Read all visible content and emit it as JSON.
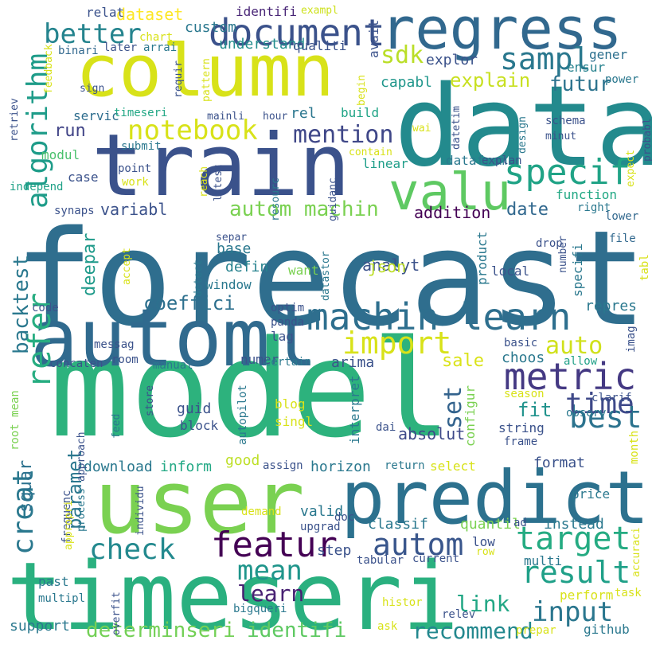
{
  "words": [
    {
      "text": "forecast",
      "color": "#2f6e8e"
    },
    {
      "text": "model",
      "color": "#2db27d"
    },
    {
      "text": "timeseri",
      "color": "#2ab07f"
    },
    {
      "text": "data",
      "color": "#238a8d"
    },
    {
      "text": "user",
      "color": "#7ad151"
    },
    {
      "text": "column",
      "color": "#d8e219"
    },
    {
      "text": "train",
      "color": "#3b528b"
    },
    {
      "text": "predict",
      "color": "#2c718e"
    },
    {
      "text": "regress",
      "color": "#31688e"
    },
    {
      "text": "automl",
      "color": "#306a8e"
    },
    {
      "text": "valu",
      "color": "#5ec962"
    },
    {
      "text": "machin learn",
      "color": "#2e6f8e"
    },
    {
      "text": "document",
      "color": "#3b528b"
    },
    {
      "text": "metric",
      "color": "#443983"
    },
    {
      "text": "specif",
      "color": "#20a386"
    },
    {
      "text": "featur",
      "color": "#440154"
    },
    {
      "text": "notebook",
      "color": "#d8e219"
    },
    {
      "text": "best",
      "color": "#2c738e"
    },
    {
      "text": "target",
      "color": "#25ab82"
    },
    {
      "text": "time",
      "color": "#3e4989"
    },
    {
      "text": "result",
      "color": "#1fa088"
    },
    {
      "text": "check",
      "color": "#23898e"
    },
    {
      "text": "autom",
      "color": "#39568c"
    },
    {
      "text": "sampl",
      "color": "#2a788e"
    },
    {
      "text": "better",
      "color": "#25848e"
    },
    {
      "text": "mention",
      "color": "#3f4788"
    },
    {
      "text": "import",
      "color": "#d8e219"
    },
    {
      "text": "auto",
      "color": "#d0e11c"
    },
    {
      "text": "input",
      "color": "#2a768e"
    },
    {
      "text": "mean",
      "color": "#1f958b"
    },
    {
      "text": "refer",
      "color": "#27ad81"
    },
    {
      "text": "algorithm",
      "color": "#1e9c89"
    },
    {
      "text": "creat",
      "color": "#2a788e"
    },
    {
      "text": "autom machin",
      "color": "#7ad151"
    },
    {
      "text": "coeffici",
      "color": "#2d708e"
    },
    {
      "text": "set",
      "color": "#33638d"
    },
    {
      "text": "learn",
      "color": "#482173"
    },
    {
      "text": "determinseri",
      "color": "#73d056"
    },
    {
      "text": "identifi",
      "color": "#5ec962"
    },
    {
      "text": "recommend",
      "color": "#23888e"
    },
    {
      "text": "link",
      "color": "#22a785"
    },
    {
      "text": "sdk",
      "color": "#bade28"
    },
    {
      "text": "explain",
      "color": "#c8e020"
    },
    {
      "text": "futur",
      "color": "#2c738e"
    },
    {
      "text": "backtest",
      "color": "#2a788e"
    },
    {
      "text": "paramet",
      "color": "#2a778e"
    },
    {
      "text": "squar",
      "color": "#2c718e"
    },
    {
      "text": "deepar",
      "color": "#1f9a8a"
    },
    {
      "text": "run",
      "color": "#414487"
    },
    {
      "text": "variabl",
      "color": "#3b528b"
    },
    {
      "text": "addition",
      "color": "#440154"
    },
    {
      "text": "date",
      "color": "#31688e"
    },
    {
      "text": "sale",
      "color": "#dae319"
    },
    {
      "text": "fit",
      "color": "#20928c"
    },
    {
      "text": "absolut",
      "color": "#3e4989"
    },
    {
      "text": "analyt",
      "color": "#3b528b"
    },
    {
      "text": "json",
      "color": "#bddf26"
    },
    {
      "text": "dataset",
      "color": "#fde725"
    },
    {
      "text": "custom",
      "color": "#2a788e"
    },
    {
      "text": "understand",
      "color": "#228d8d"
    },
    {
      "text": "qualiti",
      "color": "#3b528b"
    },
    {
      "text": "relat",
      "color": "#3b528b"
    },
    {
      "text": "identifi",
      "color": "#482576"
    },
    {
      "text": "exampl",
      "color": "#cde11d"
    },
    {
      "text": "chart",
      "color": "#d8e219"
    },
    {
      "text": "binari",
      "color": "#31688e"
    },
    {
      "text": "later",
      "color": "#3b528b"
    },
    {
      "text": "arrai",
      "color": "#2a788e"
    },
    {
      "text": "servic",
      "color": "#2e6d8e"
    },
    {
      "text": "timeseri",
      "color": "#22a785"
    },
    {
      "text": "rel",
      "color": "#2a768e"
    },
    {
      "text": "build",
      "color": "#20a486"
    },
    {
      "text": "explor",
      "color": "#3b528b"
    },
    {
      "text": "capabl",
      "color": "#1f968b"
    },
    {
      "text": "gener",
      "color": "#2d708e"
    },
    {
      "text": "ensur",
      "color": "#26828e"
    },
    {
      "text": "power",
      "color": "#2a788e"
    },
    {
      "text": "modul",
      "color": "#4ac16d"
    },
    {
      "text": "submit",
      "color": "#2a788e"
    },
    {
      "text": "case",
      "color": "#3b528b"
    },
    {
      "text": "point",
      "color": "#3b528b"
    },
    {
      "text": "work",
      "color": "#d8e219"
    },
    {
      "text": "independ",
      "color": "#1fa187"
    },
    {
      "text": "linear",
      "color": "#1f9e89"
    },
    {
      "text": "datafram",
      "color": "#2a788e"
    },
    {
      "text": "explan",
      "color": "#3b528b"
    },
    {
      "text": "function",
      "color": "#22a884"
    },
    {
      "text": "right",
      "color": "#2a788e"
    },
    {
      "text": "synaps",
      "color": "#3b528b"
    },
    {
      "text": "lower",
      "color": "#31688e"
    },
    {
      "text": "file",
      "color": "#31688e"
    },
    {
      "text": "drop",
      "color": "#3b528b"
    },
    {
      "text": "base",
      "color": "#2a788e"
    },
    {
      "text": "defin",
      "color": "#26828e"
    },
    {
      "text": "window",
      "color": "#2a788e"
    },
    {
      "text": "want",
      "color": "#7ad151"
    },
    {
      "text": "local",
      "color": "#3b528b"
    },
    {
      "text": "repres",
      "color": "#2a788e"
    },
    {
      "text": "code",
      "color": "#3b528b"
    },
    {
      "text": "optim",
      "color": "#3b528b"
    },
    {
      "text": "panda",
      "color": "#3b528b"
    },
    {
      "text": "lag",
      "color": "#3b528b"
    },
    {
      "text": "messag",
      "color": "#3b528b"
    },
    {
      "text": "numer",
      "color": "#3b528b"
    },
    {
      "text": "arima",
      "color": "#3b528b"
    },
    {
      "text": "choos",
      "color": "#2a788e"
    },
    {
      "text": "basic",
      "color": "#3b528b"
    },
    {
      "text": "allow",
      "color": "#1fa187"
    },
    {
      "text": "concaten",
      "color": "#3b528b"
    },
    {
      "text": "room",
      "color": "#3b528b"
    },
    {
      "text": "manual",
      "color": "#2a788e"
    },
    {
      "text": "certain",
      "color": "#2a788e"
    },
    {
      "text": "season",
      "color": "#d8e219"
    },
    {
      "text": "clarif",
      "color": "#3b528b"
    },
    {
      "text": "observ",
      "color": "#2a788e"
    },
    {
      "text": "guid",
      "color": "#3b528b"
    },
    {
      "text": "block",
      "color": "#3b528b"
    },
    {
      "text": "blog",
      "color": "#d8e219"
    },
    {
      "text": "singl",
      "color": "#d8e219"
    },
    {
      "text": "dai",
      "color": "#3b528b"
    },
    {
      "text": "string",
      "color": "#3b528b"
    },
    {
      "text": "frame",
      "color": "#3b528b"
    },
    {
      "text": "download",
      "color": "#2a788e"
    },
    {
      "text": "inform",
      "color": "#22a884"
    },
    {
      "text": "good",
      "color": "#bddf26"
    },
    {
      "text": "assign",
      "color": "#3b528b"
    },
    {
      "text": "horizon",
      "color": "#2a788e"
    },
    {
      "text": "return",
      "color": "#2a788e"
    },
    {
      "text": "select",
      "color": "#d8e219"
    },
    {
      "text": "format",
      "color": "#3b528b"
    },
    {
      "text": "support",
      "color": "#2a788e"
    },
    {
      "text": "past",
      "color": "#2a788e"
    },
    {
      "text": "multipl",
      "color": "#2a788e"
    },
    {
      "text": "demand",
      "color": "#d8e219"
    },
    {
      "text": "valid",
      "color": "#2a788e"
    },
    {
      "text": "doc",
      "color": "#3b528b"
    },
    {
      "text": "upgrad",
      "color": "#3b528b"
    },
    {
      "text": "classif",
      "color": "#2a788e"
    },
    {
      "text": "quantil",
      "color": "#7ad151"
    },
    {
      "text": "ad",
      "color": "#3b528b"
    },
    {
      "text": "price",
      "color": "#2a788e"
    },
    {
      "text": "instead",
      "color": "#2a788e"
    },
    {
      "text": "step",
      "color": "#3b528b"
    },
    {
      "text": "low",
      "color": "#3b528b"
    },
    {
      "text": "row",
      "color": "#d8e219"
    },
    {
      "text": "tabular",
      "color": "#3b528b"
    },
    {
      "text": "current",
      "color": "#3b528b"
    },
    {
      "text": "multi",
      "color": "#2a788e"
    },
    {
      "text": "perform",
      "color": "#d8e219"
    },
    {
      "text": "task",
      "color": "#d8e219"
    },
    {
      "text": "histor",
      "color": "#d8e219"
    },
    {
      "text": "relev",
      "color": "#3b528b"
    },
    {
      "text": "bigqueri",
      "color": "#2a788e"
    },
    {
      "text": "ask",
      "color": "#d8e219"
    },
    {
      "text": "prepar",
      "color": "#d8e219"
    },
    {
      "text": "github",
      "color": "#2a788e"
    },
    {
      "text": "avail",
      "color": "#3b528b"
    },
    {
      "text": "requir",
      "color": "#3b528b"
    },
    {
      "text": "pattern",
      "color": "#d8e219"
    },
    {
      "text": "feedback",
      "color": "#d8e219"
    },
    {
      "text": "retriev",
      "color": "#3b528b"
    },
    {
      "text": "sign",
      "color": "#3b528b"
    },
    {
      "text": "mainli",
      "color": "#3b528b"
    },
    {
      "text": "hour",
      "color": "#3b528b"
    },
    {
      "text": "begin",
      "color": "#d8e219"
    },
    {
      "text": "wai",
      "color": "#d8e219"
    },
    {
      "text": "schema",
      "color": "#3b528b"
    },
    {
      "text": "minut",
      "color": "#3b528b"
    },
    {
      "text": "contain",
      "color": "#d8e219"
    },
    {
      "text": "datetim",
      "color": "#3b528b"
    },
    {
      "text": "design",
      "color": "#2a788e"
    },
    {
      "text": "probabl",
      "color": "#3b528b"
    },
    {
      "text": "reach",
      "color": "#d8e219"
    },
    {
      "text": "latest",
      "color": "#3b528b"
    },
    {
      "text": "separ",
      "color": "#3b528b"
    },
    {
      "text": "resourc",
      "color": "#2a788e"
    },
    {
      "text": "guidanc",
      "color": "#3b528b"
    },
    {
      "text": "expect",
      "color": "#d8e219"
    },
    {
      "text": "accept",
      "color": "#d8e219"
    },
    {
      "text": "detect",
      "color": "#2a788e"
    },
    {
      "text": "datastor",
      "color": "#2a788e"
    },
    {
      "text": "product",
      "color": "#2a788e"
    },
    {
      "text": "specifi",
      "color": "#2a788e"
    },
    {
      "text": "number",
      "color": "#3b528b"
    },
    {
      "text": "tabl",
      "color": "#d8e219"
    },
    {
      "text": "imag",
      "color": "#3b528b"
    },
    {
      "text": "store",
      "color": "#3b528b"
    },
    {
      "text": "feed",
      "color": "#2a788e"
    },
    {
      "text": "root mean",
      "color": "#7ad151"
    },
    {
      "text": "approach",
      "color": "#3b528b"
    },
    {
      "text": "autopilot",
      "color": "#2a788e"
    },
    {
      "text": "interpret",
      "color": "#2a788e"
    },
    {
      "text": "configur",
      "color": "#7ad151"
    },
    {
      "text": "month",
      "color": "#d8e219"
    },
    {
      "text": "frequenc",
      "color": "#3b528b"
    },
    {
      "text": "process",
      "color": "#2a788e"
    },
    {
      "text": "appropri",
      "color": "#d8e219"
    },
    {
      "text": "individu",
      "color": "#3b528b"
    },
    {
      "text": "overfit",
      "color": "#3b528b"
    },
    {
      "text": "accuraci",
      "color": "#d8e219"
    }
  ]
}
